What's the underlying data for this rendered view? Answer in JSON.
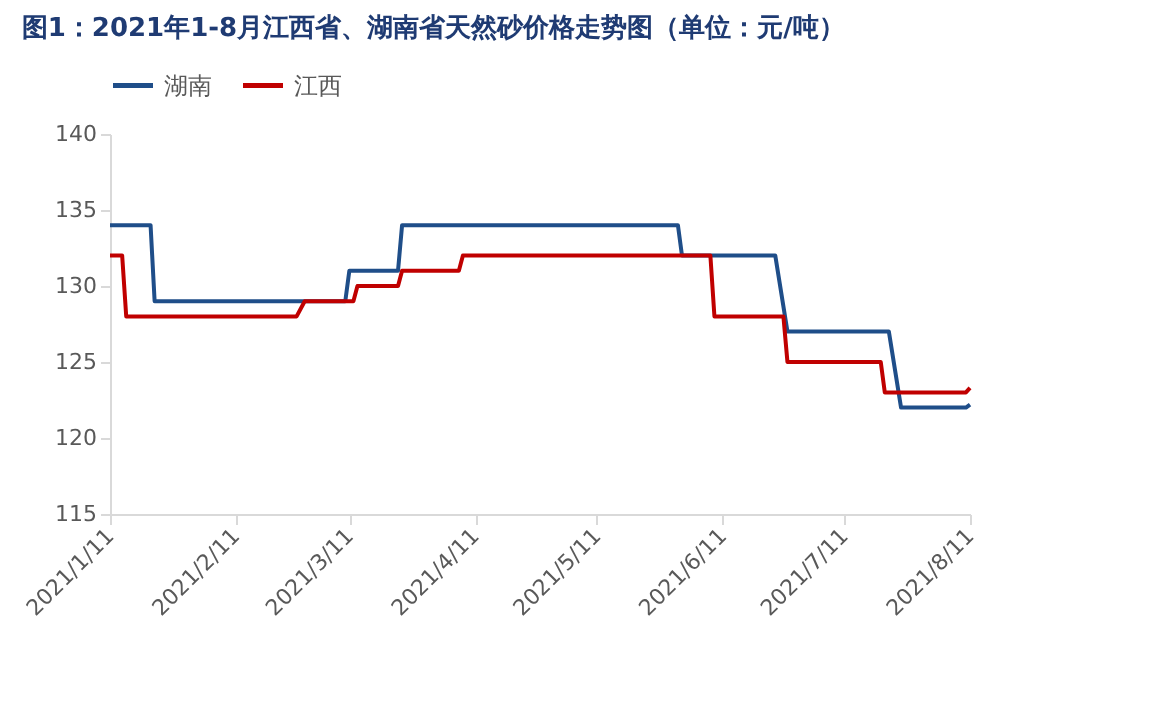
{
  "chart_data": {
    "type": "line",
    "title": "图1：2021年1-8月江西省、湖南省天然砂价格走势图（单位：元/吨）",
    "xlim": [
      "2021-01-11",
      "2021-08-11"
    ],
    "xticks": [
      {
        "value": "2021-01-11",
        "label": "2021/1/11"
      },
      {
        "value": "2021-02-11",
        "label": "2021/2/11"
      },
      {
        "value": "2021-03-11",
        "label": "2021/3/11"
      },
      {
        "value": "2021-04-11",
        "label": "2021/4/11"
      },
      {
        "value": "2021-05-11",
        "label": "2021/5/11"
      },
      {
        "value": "2021-06-11",
        "label": "2021/6/11"
      },
      {
        "value": "2021-07-11",
        "label": "2021/7/11"
      },
      {
        "value": "2021-08-11",
        "label": "2021/8/11"
      }
    ],
    "ylim": [
      115,
      140
    ],
    "yticks": [
      115,
      120,
      125,
      130,
      135,
      140
    ],
    "grid": false,
    "legend": "top",
    "marker": "none",
    "line_style": "solid",
    "series": [
      {
        "name": "湖南",
        "color": "#1f4e89",
        "x": [
          "2021-01-11",
          "2021-01-21",
          "2021-01-22",
          "2021-03-10",
          "2021-03-11",
          "2021-03-23",
          "2021-03-24",
          "2021-05-31",
          "2021-06-01",
          "2021-06-24",
          "2021-06-27",
          "2021-07-22",
          "2021-07-25",
          "2021-08-10",
          "2021-08-11"
        ],
        "values": [
          134,
          134,
          129,
          129,
          131,
          131,
          134,
          134,
          132,
          132,
          127,
          127,
          122,
          122,
          122.2
        ]
      },
      {
        "name": "江西",
        "color": "#c00000",
        "x": [
          "2021-01-11",
          "2021-01-14",
          "2021-01-15",
          "2021-02-26",
          "2021-02-28",
          "2021-03-12",
          "2021-03-13",
          "2021-03-23",
          "2021-03-24",
          "2021-04-07",
          "2021-04-08",
          "2021-06-08",
          "2021-06-09",
          "2021-06-26",
          "2021-06-27",
          "2021-07-20",
          "2021-07-21",
          "2021-08-10",
          "2021-08-11"
        ],
        "values": [
          132,
          132,
          128,
          128,
          129,
          129,
          130,
          130,
          131,
          131,
          132,
          132,
          128,
          128,
          125,
          125,
          123,
          123,
          123.3
        ]
      }
    ]
  }
}
